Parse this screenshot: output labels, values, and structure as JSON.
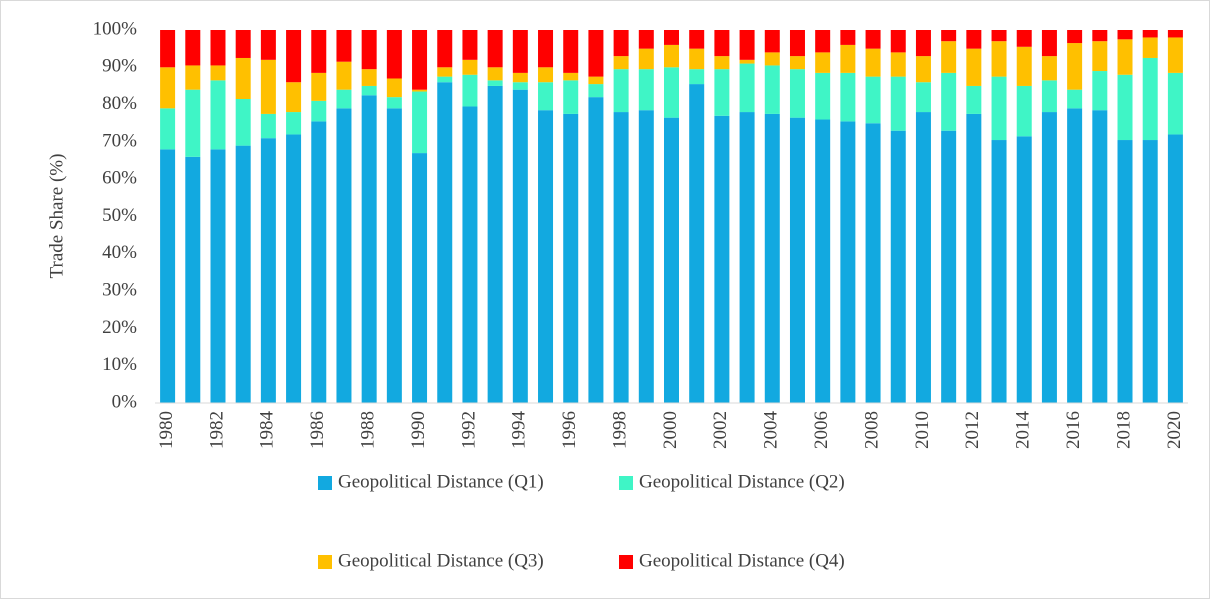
{
  "chart_data": {
    "type": "stacked_bar",
    "y_label": "Trade Share (%)",
    "categories": [
      "1980",
      null,
      "1982",
      null,
      "1984",
      null,
      "1986",
      null,
      "1988",
      null,
      "1990",
      null,
      "1992",
      null,
      "1994",
      null,
      "1996",
      null,
      "1998",
      null,
      "2000",
      null,
      "2002",
      null,
      "2004",
      null,
      "2006",
      null,
      "2008",
      null,
      "2010",
      null,
      "2012",
      null,
      "2014",
      null,
      "2016",
      null,
      "2018",
      null,
      "2020"
    ],
    "series": [
      {
        "name": "Geopolitical Distance (Q1)",
        "color": "#12a9e0",
        "values": [
          68,
          66,
          68,
          69,
          71,
          72,
          75.5,
          79,
          82.5,
          79,
          67,
          86,
          79.5,
          85,
          84,
          78.5,
          77.5,
          82,
          78,
          78.5,
          76.5,
          85.5,
          77,
          78,
          77.5,
          76.5,
          76,
          75.5,
          75,
          73,
          78,
          73,
          77.5,
          70.5,
          71.5,
          78,
          79,
          78.5,
          70.5,
          70.5,
          72
        ]
      },
      {
        "name": "Geopolitical Distance (Q2)",
        "color": "#3ff5c6",
        "values": [
          11,
          18,
          18.5,
          12.5,
          6.5,
          6,
          5.5,
          5,
          2.5,
          3,
          16.5,
          1.5,
          8.5,
          1.5,
          2,
          7.5,
          9,
          3.5,
          11.5,
          11,
          13.5,
          4,
          12.5,
          13,
          13,
          13,
          12.5,
          13,
          12.5,
          14.5,
          8,
          15.5,
          7.5,
          17,
          13.5,
          8.5,
          5,
          10.5,
          17.5,
          22,
          16.5
        ]
      },
      {
        "name": "Geopolitical Distance (Q3)",
        "color": "#ffc000",
        "values": [
          11,
          6.5,
          4,
          11,
          14.5,
          8,
          7.5,
          7.5,
          4.5,
          5,
          0.5,
          2.5,
          4,
          3.5,
          2.5,
          4,
          2,
          2,
          3.5,
          5.5,
          6,
          5.5,
          3.5,
          1,
          3.5,
          3.5,
          5.5,
          7.5,
          7.5,
          6.5,
          7,
          8.5,
          10,
          9.5,
          10.5,
          6.5,
          12.5,
          8,
          9.5,
          5.5,
          9.5
        ]
      },
      {
        "name": "Geopolitical Distance (Q4)",
        "color": "#ff0000",
        "values": [
          10,
          9.5,
          9.5,
          7.5,
          8,
          14,
          11.5,
          8.5,
          10.5,
          13,
          16,
          10,
          8,
          10,
          11.5,
          10,
          11.5,
          12.5,
          7,
          5,
          4,
          5,
          7,
          8,
          6,
          7,
          6,
          4,
          5,
          6,
          7,
          3,
          5,
          3,
          4.5,
          7,
          3.5,
          3,
          2.5,
          2,
          2
        ]
      }
    ],
    "ylim": [
      0,
      100
    ],
    "yticks": [
      {
        "value": 0,
        "label": "0%"
      },
      {
        "value": 10,
        "label": "10%"
      },
      {
        "value": 20,
        "label": "20%"
      },
      {
        "value": 30,
        "label": "30%"
      },
      {
        "value": 40,
        "label": "40%"
      },
      {
        "value": 50,
        "label": "50%"
      },
      {
        "value": 60,
        "label": "60%"
      },
      {
        "value": 70,
        "label": "70%"
      },
      {
        "value": 80,
        "label": "80%"
      },
      {
        "value": 90,
        "label": "90%"
      },
      {
        "value": 100,
        "label": "100%"
      }
    ],
    "grid": false
  }
}
